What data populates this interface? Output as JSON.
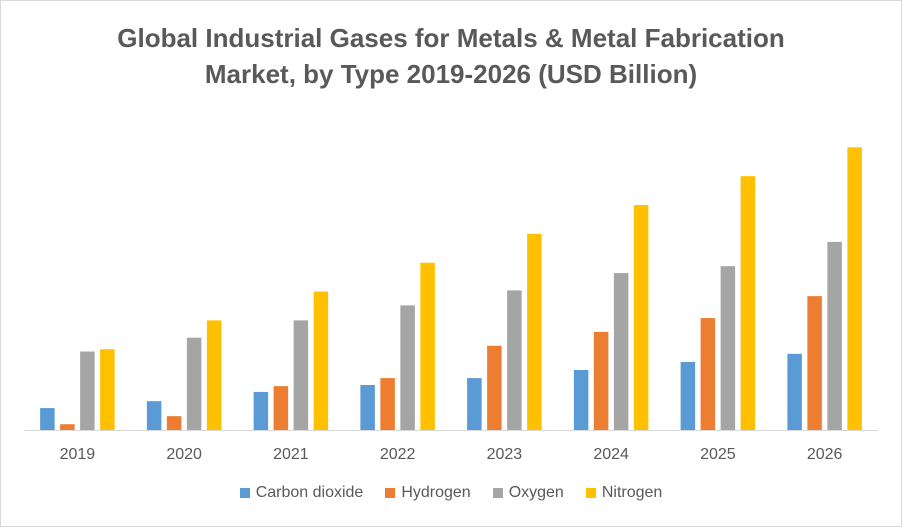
{
  "chart_data": {
    "type": "bar",
    "title": "Global Industrial Gases for Metals & Metal Fabrication Market, by Type 2019-2026 (USD Billion)",
    "title_lines": [
      "Global Industrial Gases for Metals & Metal Fabrication",
      "Market, by Type 2019-2026 (USD Billion)"
    ],
    "categories": [
      "2019",
      "2020",
      "2021",
      "2022",
      "2023",
      "2024",
      "2025",
      "2026"
    ],
    "series": [
      {
        "name": "Carbon dioxide",
        "color": "#5b9bd5",
        "values": [
          19,
          25,
          33,
          39,
          45,
          52,
          59,
          66
        ]
      },
      {
        "name": "Hydrogen",
        "color": "#ed7d31",
        "values": [
          5,
          12,
          38,
          45,
          73,
          85,
          97,
          116
        ]
      },
      {
        "name": "Oxygen",
        "color": "#a5a5a5",
        "values": [
          68,
          80,
          95,
          108,
          121,
          136,
          142,
          163
        ]
      },
      {
        "name": "Nitrogen",
        "color": "#ffc000",
        "values": [
          70,
          95,
          120,
          145,
          170,
          195,
          220,
          245
        ]
      }
    ],
    "ylim": [
      0,
      260
    ],
    "grid": false,
    "legend_position": "bottom",
    "xlabel": "",
    "ylabel": ""
  }
}
